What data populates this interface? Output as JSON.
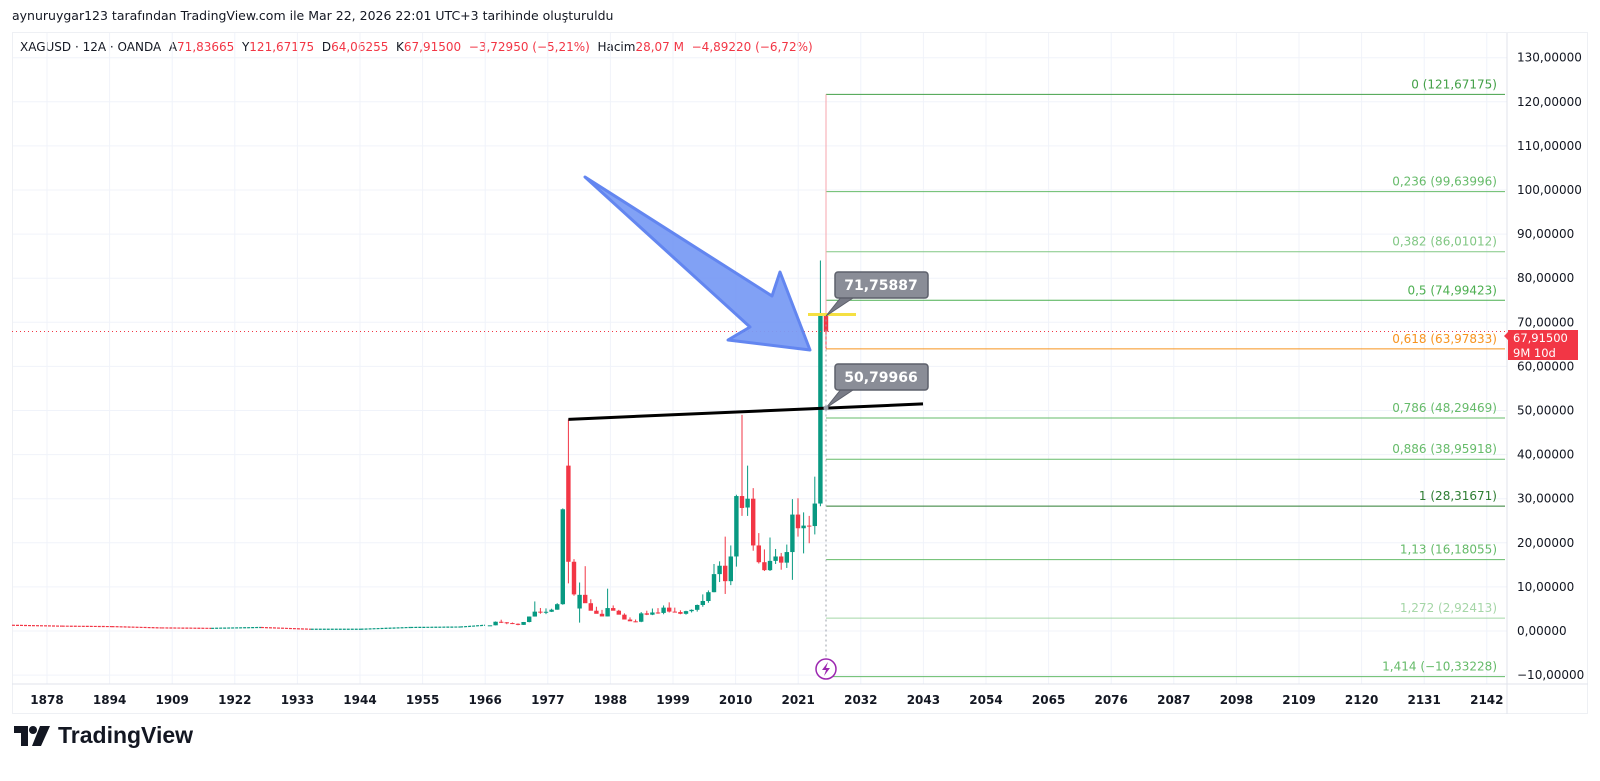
{
  "header": {
    "attribution": "aynuruygar123 tarafından TradingView.com ile Mar 22, 2026 22:01 UTC+3 tarihinde oluşturuldu"
  },
  "legend": {
    "symbol": "XAGUSD · 12A · OANDA",
    "o_label": "A",
    "o": "71,83665",
    "h_label": "Y",
    "h": "121,67175",
    "l_label": "D",
    "l": "64,06255",
    "c_label": "K",
    "c": "67,91500",
    "change": "−3,72950 (−5,21%)",
    "vol_label": "Hacim",
    "vol": "28,07 M",
    "vol_change": "−4,89220 (−6,72%)"
  },
  "price_tag": {
    "price": "67,91500",
    "countdown": "9M 10d"
  },
  "callouts": {
    "upper": "71,75887",
    "lower": "50,79966"
  },
  "logo_text": "TradingView",
  "colors": {
    "up": "#089981",
    "down": "#f23645",
    "arrow": "#7b9cf5",
    "trendline": "#000000",
    "marker": "#f5e042"
  },
  "chart_data": {
    "type": "candlestick",
    "title": "XAGUSD · 12A · OANDA",
    "xlabel": "",
    "ylabel": "",
    "ylim": [
      -10,
      130
    ],
    "grid": true,
    "y_ticks": [
      "130,00000",
      "120,00000",
      "110,00000",
      "100,00000",
      "90,00000",
      "80,00000",
      "70,00000",
      "60,00000",
      "50,00000",
      "40,00000",
      "30,00000",
      "20,00000",
      "10,00000",
      "0,00000",
      "−10,00000"
    ],
    "y_tick_values": [
      130,
      120,
      110,
      100,
      90,
      80,
      70,
      60,
      50,
      40,
      30,
      20,
      10,
      0,
      -10
    ],
    "x_ticks": [
      "1878",
      "1894",
      "1909",
      "1922",
      "1933",
      "1944",
      "1955",
      "1966",
      "1977",
      "1988",
      "1999",
      "2010",
      "2021",
      "2032",
      "2043",
      "2054",
      "2065",
      "2076",
      "2087",
      "2098",
      "2109",
      "2120",
      "2131",
      "2142"
    ],
    "early_line": {
      "years": [
        1870,
        1880,
        1890,
        1900,
        1910,
        1920,
        1930,
        1940,
        1950,
        1960,
        1965
      ],
      "values": [
        1.3,
        1.1,
        1.0,
        0.7,
        0.6,
        0.8,
        0.4,
        0.4,
        0.8,
        0.9,
        1.3
      ]
    },
    "candles": [
      [
        1966,
        1.29,
        1.29,
        1.29,
        1.29
      ],
      [
        1967,
        1.29,
        2.17,
        1.29,
        2.1
      ],
      [
        1968,
        2.1,
        2.56,
        1.81,
        1.97
      ],
      [
        1969,
        1.97,
        2.03,
        1.54,
        1.8
      ],
      [
        1970,
        1.8,
        1.93,
        1.57,
        1.64
      ],
      [
        1971,
        1.64,
        1.73,
        1.29,
        1.39
      ],
      [
        1972,
        1.39,
        2.05,
        1.39,
        2.04
      ],
      [
        1973,
        2.04,
        3.3,
        1.96,
        3.28
      ],
      [
        1974,
        3.28,
        6.7,
        3.27,
        4.39
      ],
      [
        1975,
        4.39,
        5.22,
        3.91,
        4.2
      ],
      [
        1976,
        4.2,
        5.12,
        3.82,
        4.36
      ],
      [
        1977,
        4.36,
        5.05,
        4.3,
        4.83
      ],
      [
        1978,
        4.83,
        6.31,
        4.82,
        6.08
      ],
      [
        1979,
        6.08,
        27.8,
        5.95,
        27.6
      ],
      [
        1980,
        37.5,
        48.0,
        10.8,
        15.7
      ],
      [
        1981,
        15.7,
        16.3,
        8.0,
        8.3
      ],
      [
        1982,
        5.1,
        11.0,
        1.9,
        8.2
      ],
      [
        1983,
        8.2,
        14.7,
        7.6,
        6.3
      ],
      [
        1984,
        6.3,
        7.2,
        4.9,
        4.6
      ],
      [
        1985,
        4.6,
        5.5,
        4.2,
        3.9
      ],
      [
        1986,
        3.9,
        4.8,
        3.4,
        3.3
      ],
      [
        1987,
        3.3,
        9.6,
        3.3,
        5.2
      ],
      [
        1988,
        5.2,
        5.8,
        4.8,
        4.6
      ],
      [
        1989,
        4.6,
        4.8,
        3.8,
        3.7
      ],
      [
        1990,
        3.7,
        4.0,
        2.8,
        2.6
      ],
      [
        1991,
        2.6,
        3.1,
        2.3,
        2.2
      ],
      [
        1992,
        2.2,
        2.6,
        2.0,
        2.1
      ],
      [
        1993,
        2.1,
        4.3,
        2.0,
        4.0
      ],
      [
        1994,
        4.0,
        4.6,
        3.6,
        3.7
      ],
      [
        1995,
        3.7,
        5.1,
        3.6,
        4.2
      ],
      [
        1996,
        4.2,
        5.2,
        3.9,
        4.1
      ],
      [
        1997,
        4.1,
        5.8,
        3.8,
        5.3
      ],
      [
        1998,
        5.3,
        6.5,
        4.2,
        4.4
      ],
      [
        1999,
        4.4,
        5.3,
        4.3,
        4.3
      ],
      [
        2000,
        4.3,
        4.7,
        3.8,
        3.9
      ],
      [
        2001,
        3.9,
        4.6,
        3.7,
        4.5
      ],
      [
        2002,
        4.5,
        4.9,
        4.2,
        4.8
      ],
      [
        2003,
        4.8,
        6.0,
        4.4,
        5.9
      ],
      [
        2004,
        5.9,
        8.3,
        5.5,
        6.8
      ],
      [
        2005,
        6.8,
        9.2,
        6.4,
        8.8
      ],
      [
        2006,
        8.8,
        15.2,
        8.8,
        12.9
      ],
      [
        2007,
        12.9,
        15.8,
        11.1,
        14.8
      ],
      [
        2008,
        14.8,
        21.4,
        8.4,
        11.3
      ],
      [
        2009,
        11.3,
        19.4,
        10.4,
        16.9
      ],
      [
        2010,
        16.9,
        30.9,
        14.6,
        30.6
      ],
      [
        2011,
        30.6,
        49.0,
        26.1,
        27.9
      ],
      [
        2012,
        28.0,
        37.5,
        26.1,
        30.0
      ],
      [
        2013,
        30.0,
        32.4,
        18.2,
        19.4
      ],
      [
        2014,
        19.4,
        22.2,
        15.3,
        15.6
      ],
      [
        2015,
        15.6,
        18.5,
        13.6,
        13.8
      ],
      [
        2016,
        13.8,
        21.2,
        13.6,
        15.9
      ],
      [
        2017,
        15.9,
        18.6,
        15.2,
        16.9
      ],
      [
        2018,
        16.9,
        17.7,
        13.9,
        15.5
      ],
      [
        2019,
        15.5,
        19.6,
        14.3,
        17.9
      ],
      [
        2020,
        17.9,
        29.9,
        11.6,
        26.4
      ],
      [
        2021,
        26.4,
        30.1,
        21.4,
        23.3
      ],
      [
        2022,
        23.3,
        26.9,
        17.6,
        23.9
      ],
      [
        2023,
        23.9,
        26.1,
        19.9,
        23.8
      ],
      [
        2024,
        23.8,
        35.0,
        21.9,
        28.9
      ],
      [
        2025,
        28.9,
        84.0,
        28.3,
        71.8
      ],
      [
        2026,
        71.84,
        121.67,
        64.06,
        67.915
      ]
    ],
    "candle_fields": [
      "year",
      "open",
      "high",
      "low",
      "close"
    ],
    "current_price": 67.915,
    "trendline": {
      "from": [
        1980,
        48.0
      ],
      "to": [
        2043,
        51.5
      ]
    },
    "marker_price": 71.75887,
    "fib_levels": [
      {
        "ratio": "0",
        "price": 121.67175,
        "label": "0 (121,67175)",
        "color": "#43a047"
      },
      {
        "ratio": "0,236",
        "price": 99.63996,
        "label": "0,236 (99,63996)",
        "color": "#66bb6a"
      },
      {
        "ratio": "0,382",
        "price": 86.01012,
        "label": "0,382 (86,01012)",
        "color": "#81c784"
      },
      {
        "ratio": "0,5",
        "price": 74.99423,
        "label": "0,5 (74,99423)",
        "color": "#4caf50"
      },
      {
        "ratio": "0,618",
        "price": 63.97833,
        "label": "0,618 (63,97833)",
        "color": "#f7931e"
      },
      {
        "ratio": "0,786",
        "price": 48.29469,
        "label": "0,786 (48,29469)",
        "color": "#66bb6a"
      },
      {
        "ratio": "0,886",
        "price": 38.95918,
        "label": "0,886 (38,95918)",
        "color": "#66bb6a"
      },
      {
        "ratio": "1",
        "price": 28.31671,
        "label": "1 (28,31671)",
        "color": "#2e7d32"
      },
      {
        "ratio": "1,13",
        "price": 16.18055,
        "label": "1,13 (16,18055)",
        "color": "#66bb6a"
      },
      {
        "ratio": "1,272",
        "price": 2.92413,
        "label": "1,272 (2,92413)",
        "color": "#a5d6a7"
      },
      {
        "ratio": "1,414",
        "price": -10.33228,
        "label": "1,414 (−10,33228)",
        "color": "#66bb6a"
      }
    ]
  }
}
